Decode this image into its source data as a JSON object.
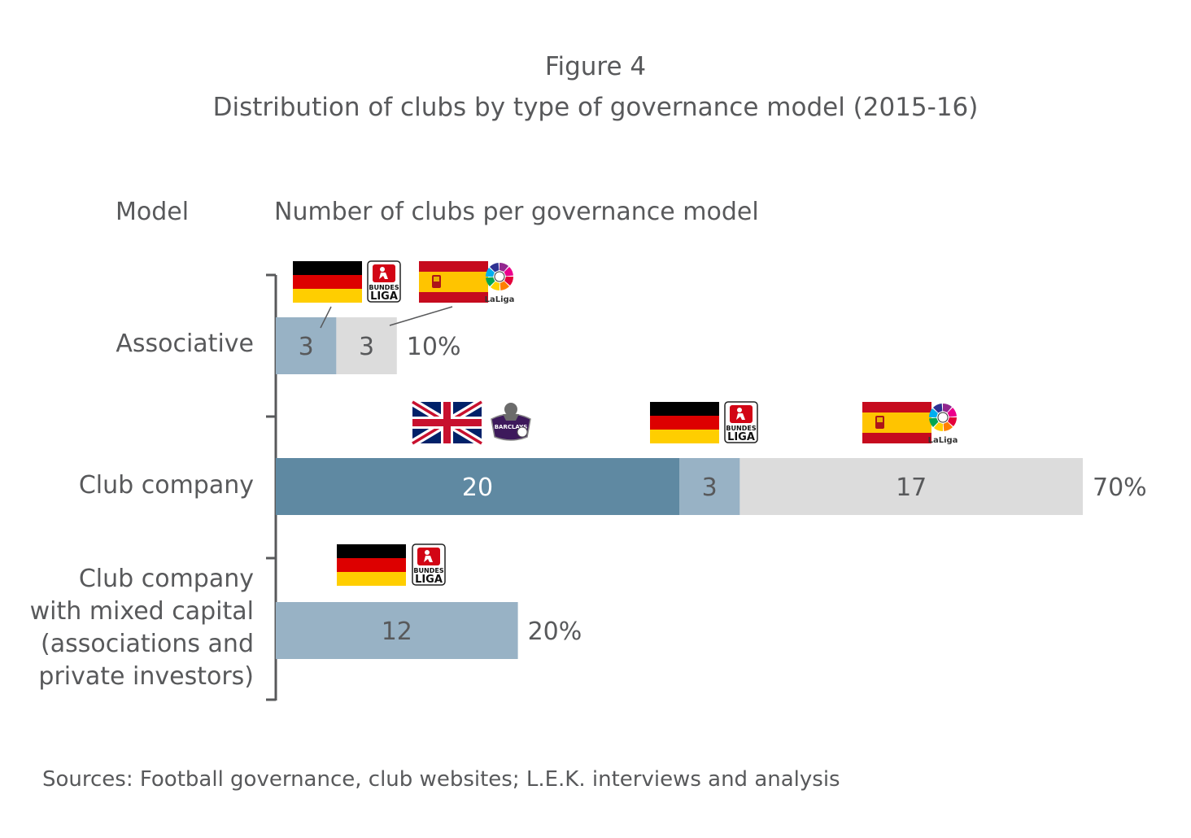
{
  "figure_label": "Figure 4",
  "title": "Distribution of clubs by type of governance model (2015-16)",
  "header_model": "Model",
  "header_count": "Number of clubs per governance model",
  "source": "Sources: Football governance, club websites; L.E.K. interviews and analysis",
  "colors": {
    "dark": "#5f89a2",
    "mid": "#98b2c5",
    "light": "#dcdcdc",
    "text": "#58595b",
    "text_on_dark": "#ffffff",
    "axis": "#58595b"
  },
  "logo_text": {
    "bundesliga_top": "BUNDES",
    "bundesliga_bottom": "LIGA",
    "laliga": "LaLiga",
    "premier": "BARCLAYS"
  },
  "chart_data": {
    "type": "bar",
    "orientation": "horizontal",
    "stacked": true,
    "categories": [
      [
        "Associative"
      ],
      [
        "Club company"
      ],
      [
        "Club company",
        "with mixed capital",
        "(associations and",
        "private investors)"
      ]
    ],
    "rows": [
      {
        "segments": [
          {
            "value": 3,
            "color": "mid",
            "flag": "germany",
            "logo": "bundesliga"
          },
          {
            "value": 3,
            "color": "light",
            "flag": "spain",
            "logo": "laliga"
          }
        ],
        "share_label": "10%"
      },
      {
        "segments": [
          {
            "value": 20,
            "color": "dark",
            "flag": "uk",
            "logo": "premier-league"
          },
          {
            "value": 3,
            "color": "mid",
            "flag": "germany",
            "logo": "bundesliga"
          },
          {
            "value": 17,
            "color": "light",
            "flag": "spain",
            "logo": "laliga"
          }
        ],
        "share_label": "70%"
      },
      {
        "segments": [
          {
            "value": 12,
            "color": "mid",
            "flag": "germany",
            "logo": "bundesliga"
          }
        ],
        "share_label": "20%"
      }
    ],
    "xlim": [
      0,
      40
    ],
    "grid": false,
    "legend": "none"
  }
}
